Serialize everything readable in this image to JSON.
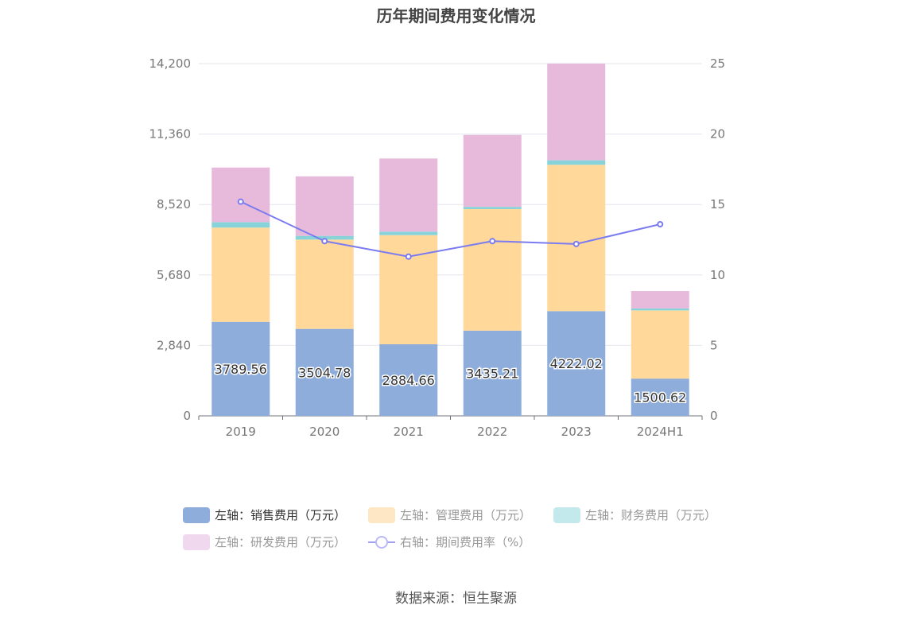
{
  "title": "历年期间费用变化情况",
  "source": "数据来源：恒生聚源",
  "legend": [
    {
      "label": "左轴：销售费用（万元）",
      "color": "#8eaddb",
      "kind": "box",
      "text_color": "#333333"
    },
    {
      "label": "左轴：管理费用（万元）",
      "color": "#fde7c4",
      "kind": "box",
      "text_color": "#999999"
    },
    {
      "label": "左轴：财务费用（万元）",
      "color": "#c3e9ec",
      "kind": "box",
      "text_color": "#999999"
    },
    {
      "label": "左轴：研发费用（万元）",
      "color": "#f0d9ee",
      "kind": "box",
      "text_color": "#999999"
    },
    {
      "label": "右轴：期间费用率（%）",
      "color": "#9f9ff7",
      "kind": "line",
      "text_color": "#999999"
    }
  ],
  "chart_data": {
    "type": "bar",
    "stacked": true,
    "categories": [
      "2019",
      "2020",
      "2021",
      "2022",
      "2023",
      "2024H1"
    ],
    "left_axis": {
      "ticks": [
        "0",
        "2,840",
        "5,680",
        "8,520",
        "11,360",
        "14,200"
      ],
      "ylim": [
        0,
        14200
      ]
    },
    "right_axis": {
      "ticks": [
        "0",
        "5",
        "10",
        "15",
        "20",
        "25"
      ],
      "ylim": [
        0,
        25
      ]
    },
    "series": [
      {
        "name": "左轴：销售费用（万元）",
        "axis": "left",
        "color": "#8eaddb",
        "values": [
          3789.56,
          3504.78,
          2884.66,
          3435.21,
          4222.02,
          1500.62
        ],
        "labels": [
          "3789.56",
          "3504.78",
          "2884.66",
          "3435.21",
          "4222.02",
          "1500.62"
        ]
      },
      {
        "name": "左轴：管理费用（万元）",
        "axis": "left",
        "color": "#ffd89a",
        "values": [
          3800,
          3600,
          4400,
          4900,
          5900,
          2750
        ]
      },
      {
        "name": "左轴：财务费用（万元）",
        "axis": "left",
        "color": "#87d3d9",
        "values": [
          220,
          150,
          140,
          90,
          180,
          80
        ]
      },
      {
        "name": "左轴：研发费用（万元）",
        "axis": "left",
        "color": "#e7b9da",
        "values": [
          2200,
          2400,
          2950,
          2900,
          3900,
          700
        ]
      },
      {
        "name": "右轴：期间费用率（%）",
        "axis": "right",
        "type": "line",
        "color": "#7b7bf1",
        "values": [
          15.2,
          12.4,
          11.3,
          12.4,
          12.2,
          13.6
        ]
      }
    ],
    "grid": true
  }
}
